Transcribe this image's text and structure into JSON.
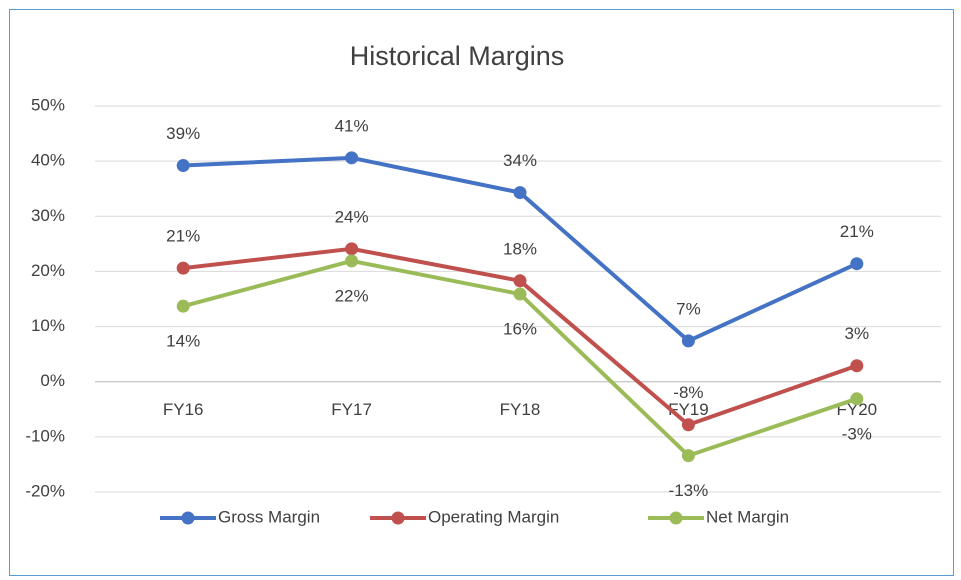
{
  "chart_data": {
    "type": "line",
    "title": "Historical Margins",
    "categories": [
      "FY16",
      "FY17",
      "FY18",
      "FY19",
      "FY20"
    ],
    "series": [
      {
        "name": "Gross Margin",
        "color": "#4472c4",
        "values": [
          39.2,
          40.6,
          34.3,
          7.4,
          21.4
        ],
        "value_labels": [
          "39%",
          "41%",
          "34%",
          "7%",
          "21%"
        ]
      },
      {
        "name": "Operating Margin",
        "color": "#c0504d",
        "values": [
          20.6,
          24.1,
          18.3,
          -7.8,
          2.9
        ],
        "value_labels": [
          "21%",
          "24%",
          "18%",
          "-8%",
          "3%"
        ]
      },
      {
        "name": "Net Margin",
        "color": "#9bbb59",
        "values": [
          13.7,
          21.9,
          15.9,
          -13.4,
          -3.1
        ],
        "value_labels": [
          "14%",
          "22%",
          "16%",
          "-13%",
          "-3%"
        ]
      }
    ],
    "ylim": [
      -20,
      50
    ],
    "yticks": [
      {
        "value": -20,
        "label": "-20%"
      },
      {
        "value": -10,
        "label": "-10%"
      },
      {
        "value": 0,
        "label": "0%"
      },
      {
        "value": 10,
        "label": "10%"
      },
      {
        "value": 20,
        "label": "20%"
      },
      {
        "value": 30,
        "label": "30%"
      },
      {
        "value": 40,
        "label": "40%"
      },
      {
        "value": 50,
        "label": "50%"
      }
    ],
    "grid": true,
    "legend": "bottom"
  }
}
